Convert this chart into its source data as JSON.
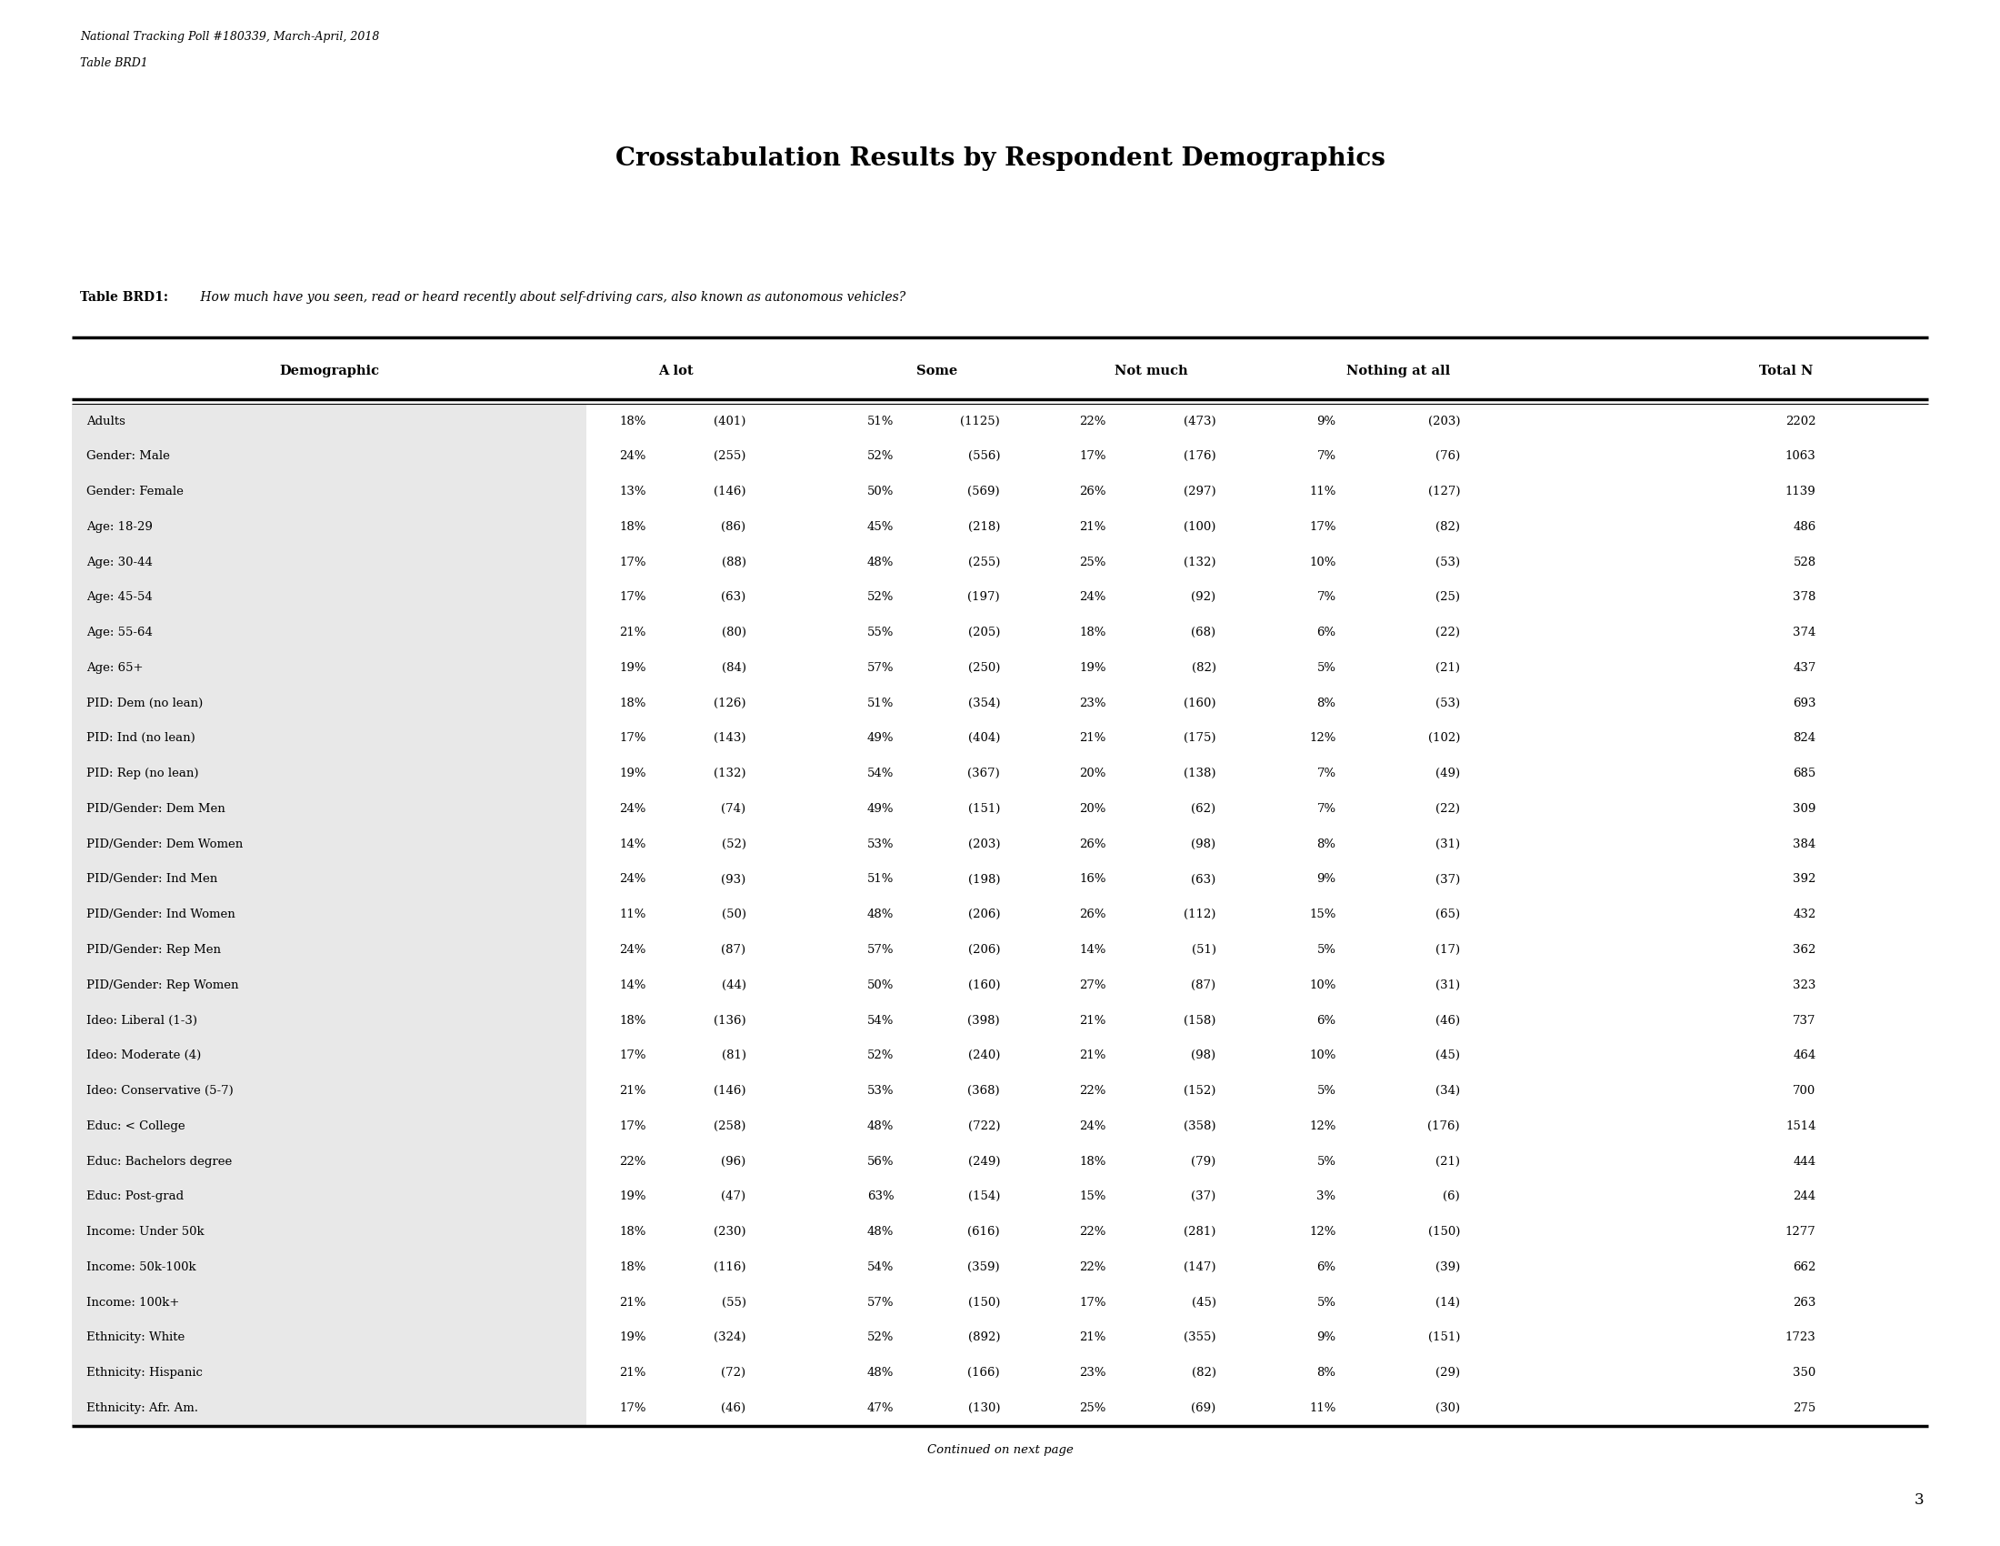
{
  "top_left_text_line1": "National Tracking Poll #180339, March-April, 2018",
  "top_left_text_line2": "Table BRD1",
  "main_title": "Crosstabulation Results by Respondent Demographics",
  "table_label_bold": "Table BRD1:",
  "table_label_italic": " How much have you seen, read or heard recently about self-driving cars, also known as autonomous vehicles?",
  "col_headers": [
    "Demographic",
    "A lot",
    "Some",
    "Not much",
    "Nothing at all",
    "Total N"
  ],
  "rows": [
    [
      "Adults",
      "18%",
      "(401)",
      "51%",
      "(1125)",
      "22%",
      "(473)",
      "9%",
      "(203)",
      "2202"
    ],
    [
      "Gender: Male",
      "24%",
      "(255)",
      "52%",
      "(556)",
      "17%",
      "(176)",
      "7%",
      "(76)",
      "1063"
    ],
    [
      "Gender: Female",
      "13%",
      "(146)",
      "50%",
      "(569)",
      "26%",
      "(297)",
      "11%",
      "(127)",
      "1139"
    ],
    [
      "Age: 18-29",
      "18%",
      "(86)",
      "45%",
      "(218)",
      "21%",
      "(100)",
      "17%",
      "(82)",
      "486"
    ],
    [
      "Age: 30-44",
      "17%",
      "(88)",
      "48%",
      "(255)",
      "25%",
      "(132)",
      "10%",
      "(53)",
      "528"
    ],
    [
      "Age: 45-54",
      "17%",
      "(63)",
      "52%",
      "(197)",
      "24%",
      "(92)",
      "7%",
      "(25)",
      "378"
    ],
    [
      "Age: 55-64",
      "21%",
      "(80)",
      "55%",
      "(205)",
      "18%",
      "(68)",
      "6%",
      "(22)",
      "374"
    ],
    [
      "Age: 65+",
      "19%",
      "(84)",
      "57%",
      "(250)",
      "19%",
      "(82)",
      "5%",
      "(21)",
      "437"
    ],
    [
      "PID: Dem (no lean)",
      "18%",
      "(126)",
      "51%",
      "(354)",
      "23%",
      "(160)",
      "8%",
      "(53)",
      "693"
    ],
    [
      "PID: Ind (no lean)",
      "17%",
      "(143)",
      "49%",
      "(404)",
      "21%",
      "(175)",
      "12%",
      "(102)",
      "824"
    ],
    [
      "PID: Rep (no lean)",
      "19%",
      "(132)",
      "54%",
      "(367)",
      "20%",
      "(138)",
      "7%",
      "(49)",
      "685"
    ],
    [
      "PID/Gender: Dem Men",
      "24%",
      "(74)",
      "49%",
      "(151)",
      "20%",
      "(62)",
      "7%",
      "(22)",
      "309"
    ],
    [
      "PID/Gender: Dem Women",
      "14%",
      "(52)",
      "53%",
      "(203)",
      "26%",
      "(98)",
      "8%",
      "(31)",
      "384"
    ],
    [
      "PID/Gender: Ind Men",
      "24%",
      "(93)",
      "51%",
      "(198)",
      "16%",
      "(63)",
      "9%",
      "(37)",
      "392"
    ],
    [
      "PID/Gender: Ind Women",
      "11%",
      "(50)",
      "48%",
      "(206)",
      "26%",
      "(112)",
      "15%",
      "(65)",
      "432"
    ],
    [
      "PID/Gender: Rep Men",
      "24%",
      "(87)",
      "57%",
      "(206)",
      "14%",
      "(51)",
      "5%",
      "(17)",
      "362"
    ],
    [
      "PID/Gender: Rep Women",
      "14%",
      "(44)",
      "50%",
      "(160)",
      "27%",
      "(87)",
      "10%",
      "(31)",
      "323"
    ],
    [
      "Ideo: Liberal (1-3)",
      "18%",
      "(136)",
      "54%",
      "(398)",
      "21%",
      "(158)",
      "6%",
      "(46)",
      "737"
    ],
    [
      "Ideo: Moderate (4)",
      "17%",
      "(81)",
      "52%",
      "(240)",
      "21%",
      "(98)",
      "10%",
      "(45)",
      "464"
    ],
    [
      "Ideo: Conservative (5-7)",
      "21%",
      "(146)",
      "53%",
      "(368)",
      "22%",
      "(152)",
      "5%",
      "(34)",
      "700"
    ],
    [
      "Educ: < College",
      "17%",
      "(258)",
      "48%",
      "(722)",
      "24%",
      "(358)",
      "12%",
      "(176)",
      "1514"
    ],
    [
      "Educ: Bachelors degree",
      "22%",
      "(96)",
      "56%",
      "(249)",
      "18%",
      "(79)",
      "5%",
      "(21)",
      "444"
    ],
    [
      "Educ: Post-grad",
      "19%",
      "(47)",
      "63%",
      "(154)",
      "15%",
      "(37)",
      "3%",
      "(6)",
      "244"
    ],
    [
      "Income: Under 50k",
      "18%",
      "(230)",
      "48%",
      "(616)",
      "22%",
      "(281)",
      "12%",
      "(150)",
      "1277"
    ],
    [
      "Income: 50k-100k",
      "18%",
      "(116)",
      "54%",
      "(359)",
      "22%",
      "(147)",
      "6%",
      "(39)",
      "662"
    ],
    [
      "Income: 100k+",
      "21%",
      "(55)",
      "57%",
      "(150)",
      "17%",
      "(45)",
      "5%",
      "(14)",
      "263"
    ],
    [
      "Ethnicity: White",
      "19%",
      "(324)",
      "52%",
      "(892)",
      "21%",
      "(355)",
      "9%",
      "(151)",
      "1723"
    ],
    [
      "Ethnicity: Hispanic",
      "21%",
      "(72)",
      "48%",
      "(166)",
      "23%",
      "(82)",
      "8%",
      "(29)",
      "350"
    ],
    [
      "Ethnicity: Afr. Am.",
      "17%",
      "(46)",
      "47%",
      "(130)",
      "25%",
      "(69)",
      "11%",
      "(30)",
      "275"
    ]
  ],
  "footer_text": "Continued on next page",
  "page_number": "3",
  "bg_color": "#ffffff",
  "shaded_col_bg": "#e8e8e8",
  "font_family": "DejaVu Serif"
}
